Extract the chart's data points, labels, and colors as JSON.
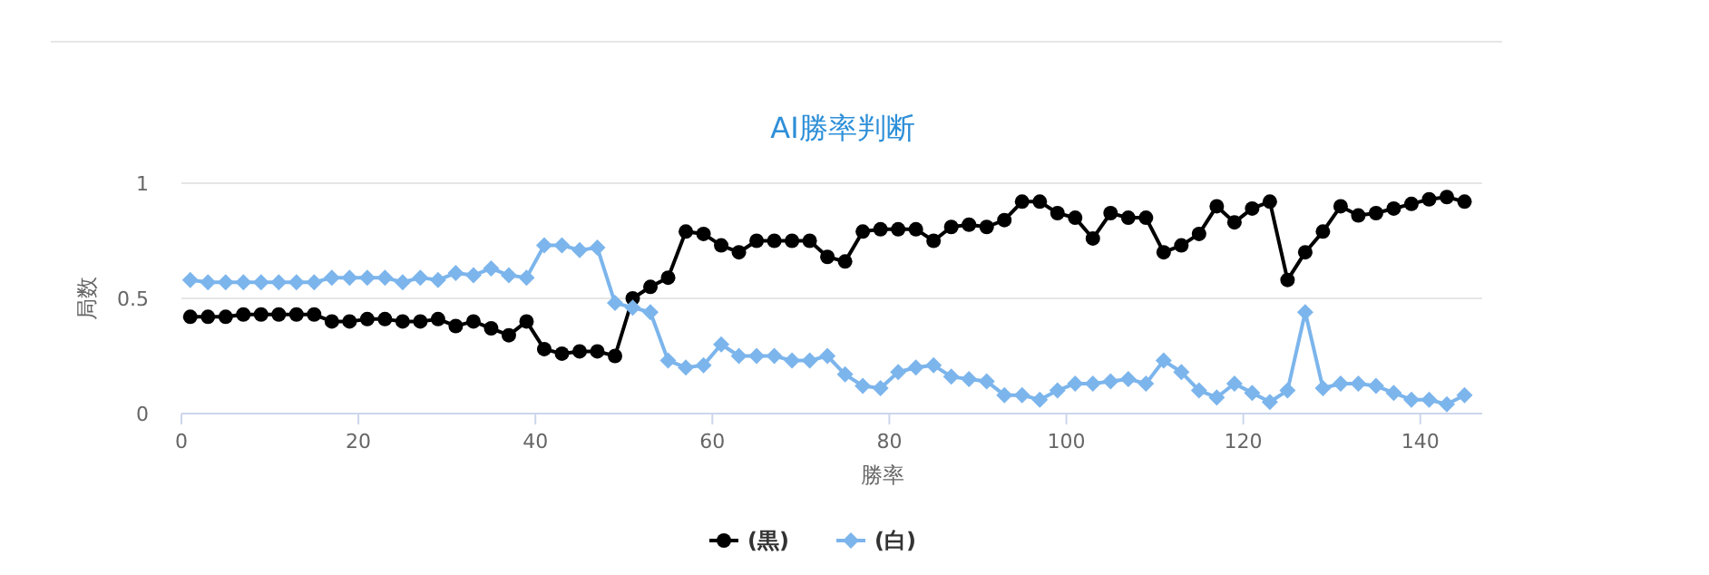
{
  "chart_data": {
    "type": "line",
    "title": "AI勝率判断",
    "xlabel": "勝率",
    "ylabel": "局数",
    "x": [
      1,
      3,
      5,
      7,
      9,
      11,
      13,
      15,
      17,
      19,
      21,
      23,
      25,
      27,
      29,
      31,
      33,
      35,
      37,
      39,
      41,
      43,
      45,
      47,
      49,
      51,
      53,
      55,
      57,
      59,
      61,
      63,
      65,
      67,
      69,
      71,
      73,
      75,
      77,
      79,
      81,
      83,
      85,
      87,
      89,
      91,
      93,
      95,
      97,
      99,
      101,
      103,
      105,
      107,
      109,
      111,
      113,
      115,
      117,
      119,
      121,
      123,
      125,
      127,
      129,
      131,
      133,
      135,
      137,
      139,
      141,
      143,
      145
    ],
    "xlim": [
      0,
      147
    ],
    "xticks": [
      0,
      20,
      40,
      60,
      80,
      100,
      120,
      140
    ],
    "ylim": [
      0,
      1
    ],
    "yticks": [
      0,
      0.5,
      1
    ],
    "grid": "y",
    "legend": "bottom",
    "series": [
      {
        "name": "(黒)",
        "color": "#000000",
        "marker": "circle",
        "values": [
          0.42,
          0.42,
          0.42,
          0.43,
          0.43,
          0.43,
          0.43,
          0.43,
          0.4,
          0.4,
          0.41,
          0.41,
          0.4,
          0.4,
          0.41,
          0.38,
          0.4,
          0.37,
          0.34,
          0.4,
          0.28,
          0.26,
          0.27,
          0.27,
          0.25,
          0.5,
          0.55,
          0.59,
          0.79,
          0.78,
          0.73,
          0.7,
          0.75,
          0.75,
          0.75,
          0.75,
          0.68,
          0.66,
          0.79,
          0.8,
          0.8,
          0.8,
          0.75,
          0.81,
          0.82,
          0.81,
          0.84,
          0.92,
          0.92,
          0.87,
          0.85,
          0.76,
          0.87,
          0.85,
          0.85,
          0.7,
          0.73,
          0.78,
          0.9,
          0.83,
          0.89,
          0.92,
          0.58,
          0.7,
          0.79,
          0.9,
          0.86,
          0.87,
          0.89,
          0.91,
          0.93,
          0.94,
          0.92
        ]
      },
      {
        "name": "(白)",
        "color": "#7cb5ec",
        "marker": "diamond",
        "values": [
          0.58,
          0.57,
          0.57,
          0.57,
          0.57,
          0.57,
          0.57,
          0.57,
          0.59,
          0.59,
          0.59,
          0.59,
          0.57,
          0.59,
          0.58,
          0.61,
          0.6,
          0.63,
          0.6,
          0.59,
          0.73,
          0.73,
          0.71,
          0.72,
          0.48,
          0.46,
          0.44,
          0.23,
          0.2,
          0.21,
          0.3,
          0.25,
          0.25,
          0.25,
          0.23,
          0.23,
          0.25,
          0.17,
          0.12,
          0.11,
          0.18,
          0.2,
          0.21,
          0.16,
          0.15,
          0.14,
          0.08,
          0.08,
          0.06,
          0.1,
          0.13,
          0.13,
          0.14,
          0.15,
          0.13,
          0.23,
          0.18,
          0.1,
          0.07,
          0.13,
          0.09,
          0.05,
          0.1,
          0.44,
          0.11,
          0.13,
          0.13,
          0.12,
          0.09,
          0.06,
          0.06,
          0.04,
          0.08
        ]
      }
    ]
  }
}
